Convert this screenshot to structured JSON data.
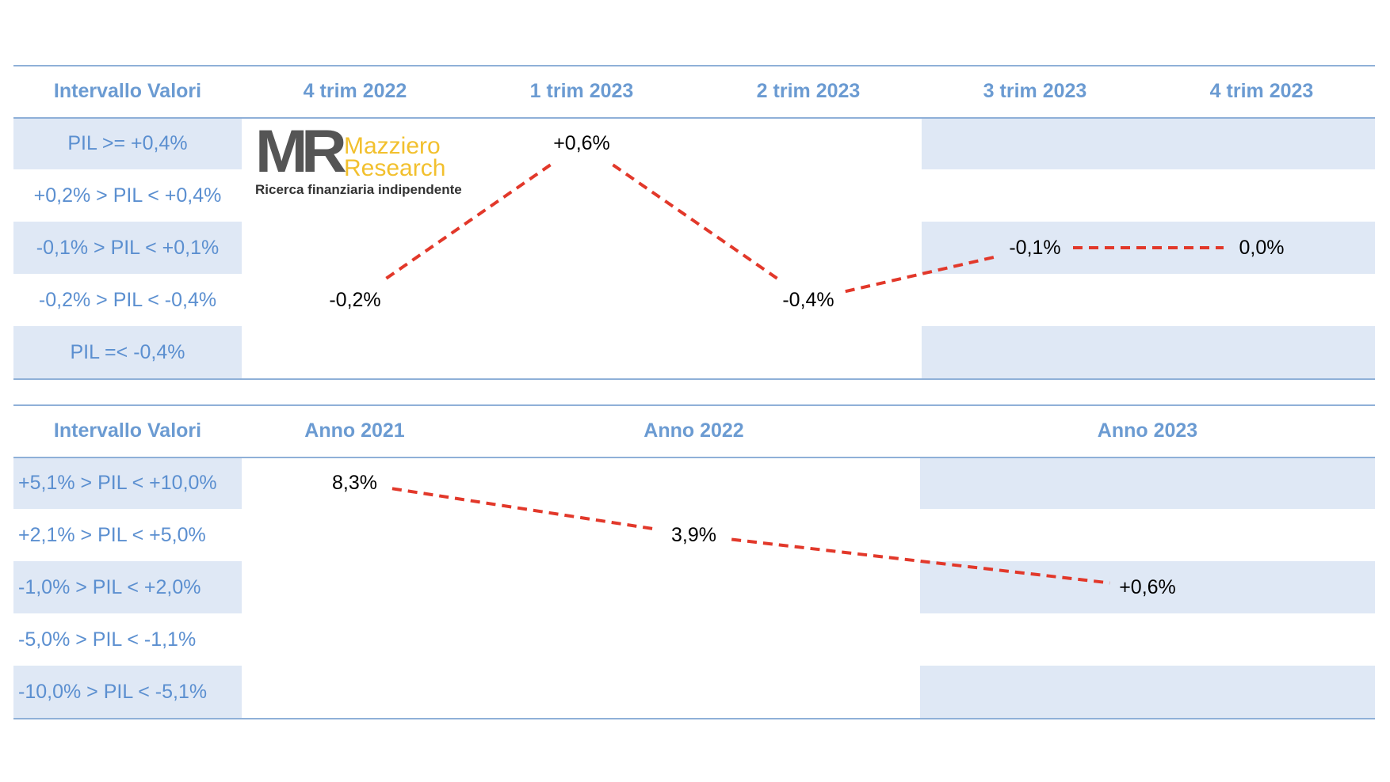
{
  "logo": {
    "mark": "MR",
    "name_line1": "Mazziero",
    "name_line2": "Research",
    "tagline": "Ricerca finanziaria indipendente"
  },
  "tables": [
    {
      "header": [
        "Intervallo Valori",
        "4 trim 2022",
        "1 trim 2023",
        "2 trim 2023",
        "3 trim 2023",
        "4 trim 2023"
      ],
      "rows": [
        [
          "PIL >= +0,4%",
          null,
          "+0,6%",
          null,
          null,
          null
        ],
        [
          "+0,2% > PIL < +0,4%",
          null,
          null,
          null,
          null,
          null
        ],
        [
          "-0,1% > PIL < +0,1%",
          null,
          null,
          null,
          "-0,1%",
          "0,0%"
        ],
        [
          "-0,2% > PIL < -0,4%",
          "-0,2%",
          null,
          "-0,4%",
          null,
          null
        ],
        [
          "PIL =< -0,4%",
          null,
          null,
          null,
          null,
          null
        ]
      ]
    },
    {
      "header": [
        "Intervallo Valori",
        "Anno 2021",
        "Anno 2022",
        "Anno 2023"
      ],
      "rows": [
        [
          "+5,1% > PIL < +10,0%",
          "8,3%",
          null,
          null
        ],
        [
          "+2,1% > PIL < +5,0%",
          null,
          "3,9%",
          null
        ],
        [
          "-1,0% > PIL < +2,0%",
          null,
          null,
          "+0,6%"
        ],
        [
          "-5,0% > PIL < -1,1%",
          null,
          null,
          null
        ],
        [
          "-10,0% > PIL < -5,1%",
          null,
          null,
          null
        ]
      ]
    }
  ]
}
